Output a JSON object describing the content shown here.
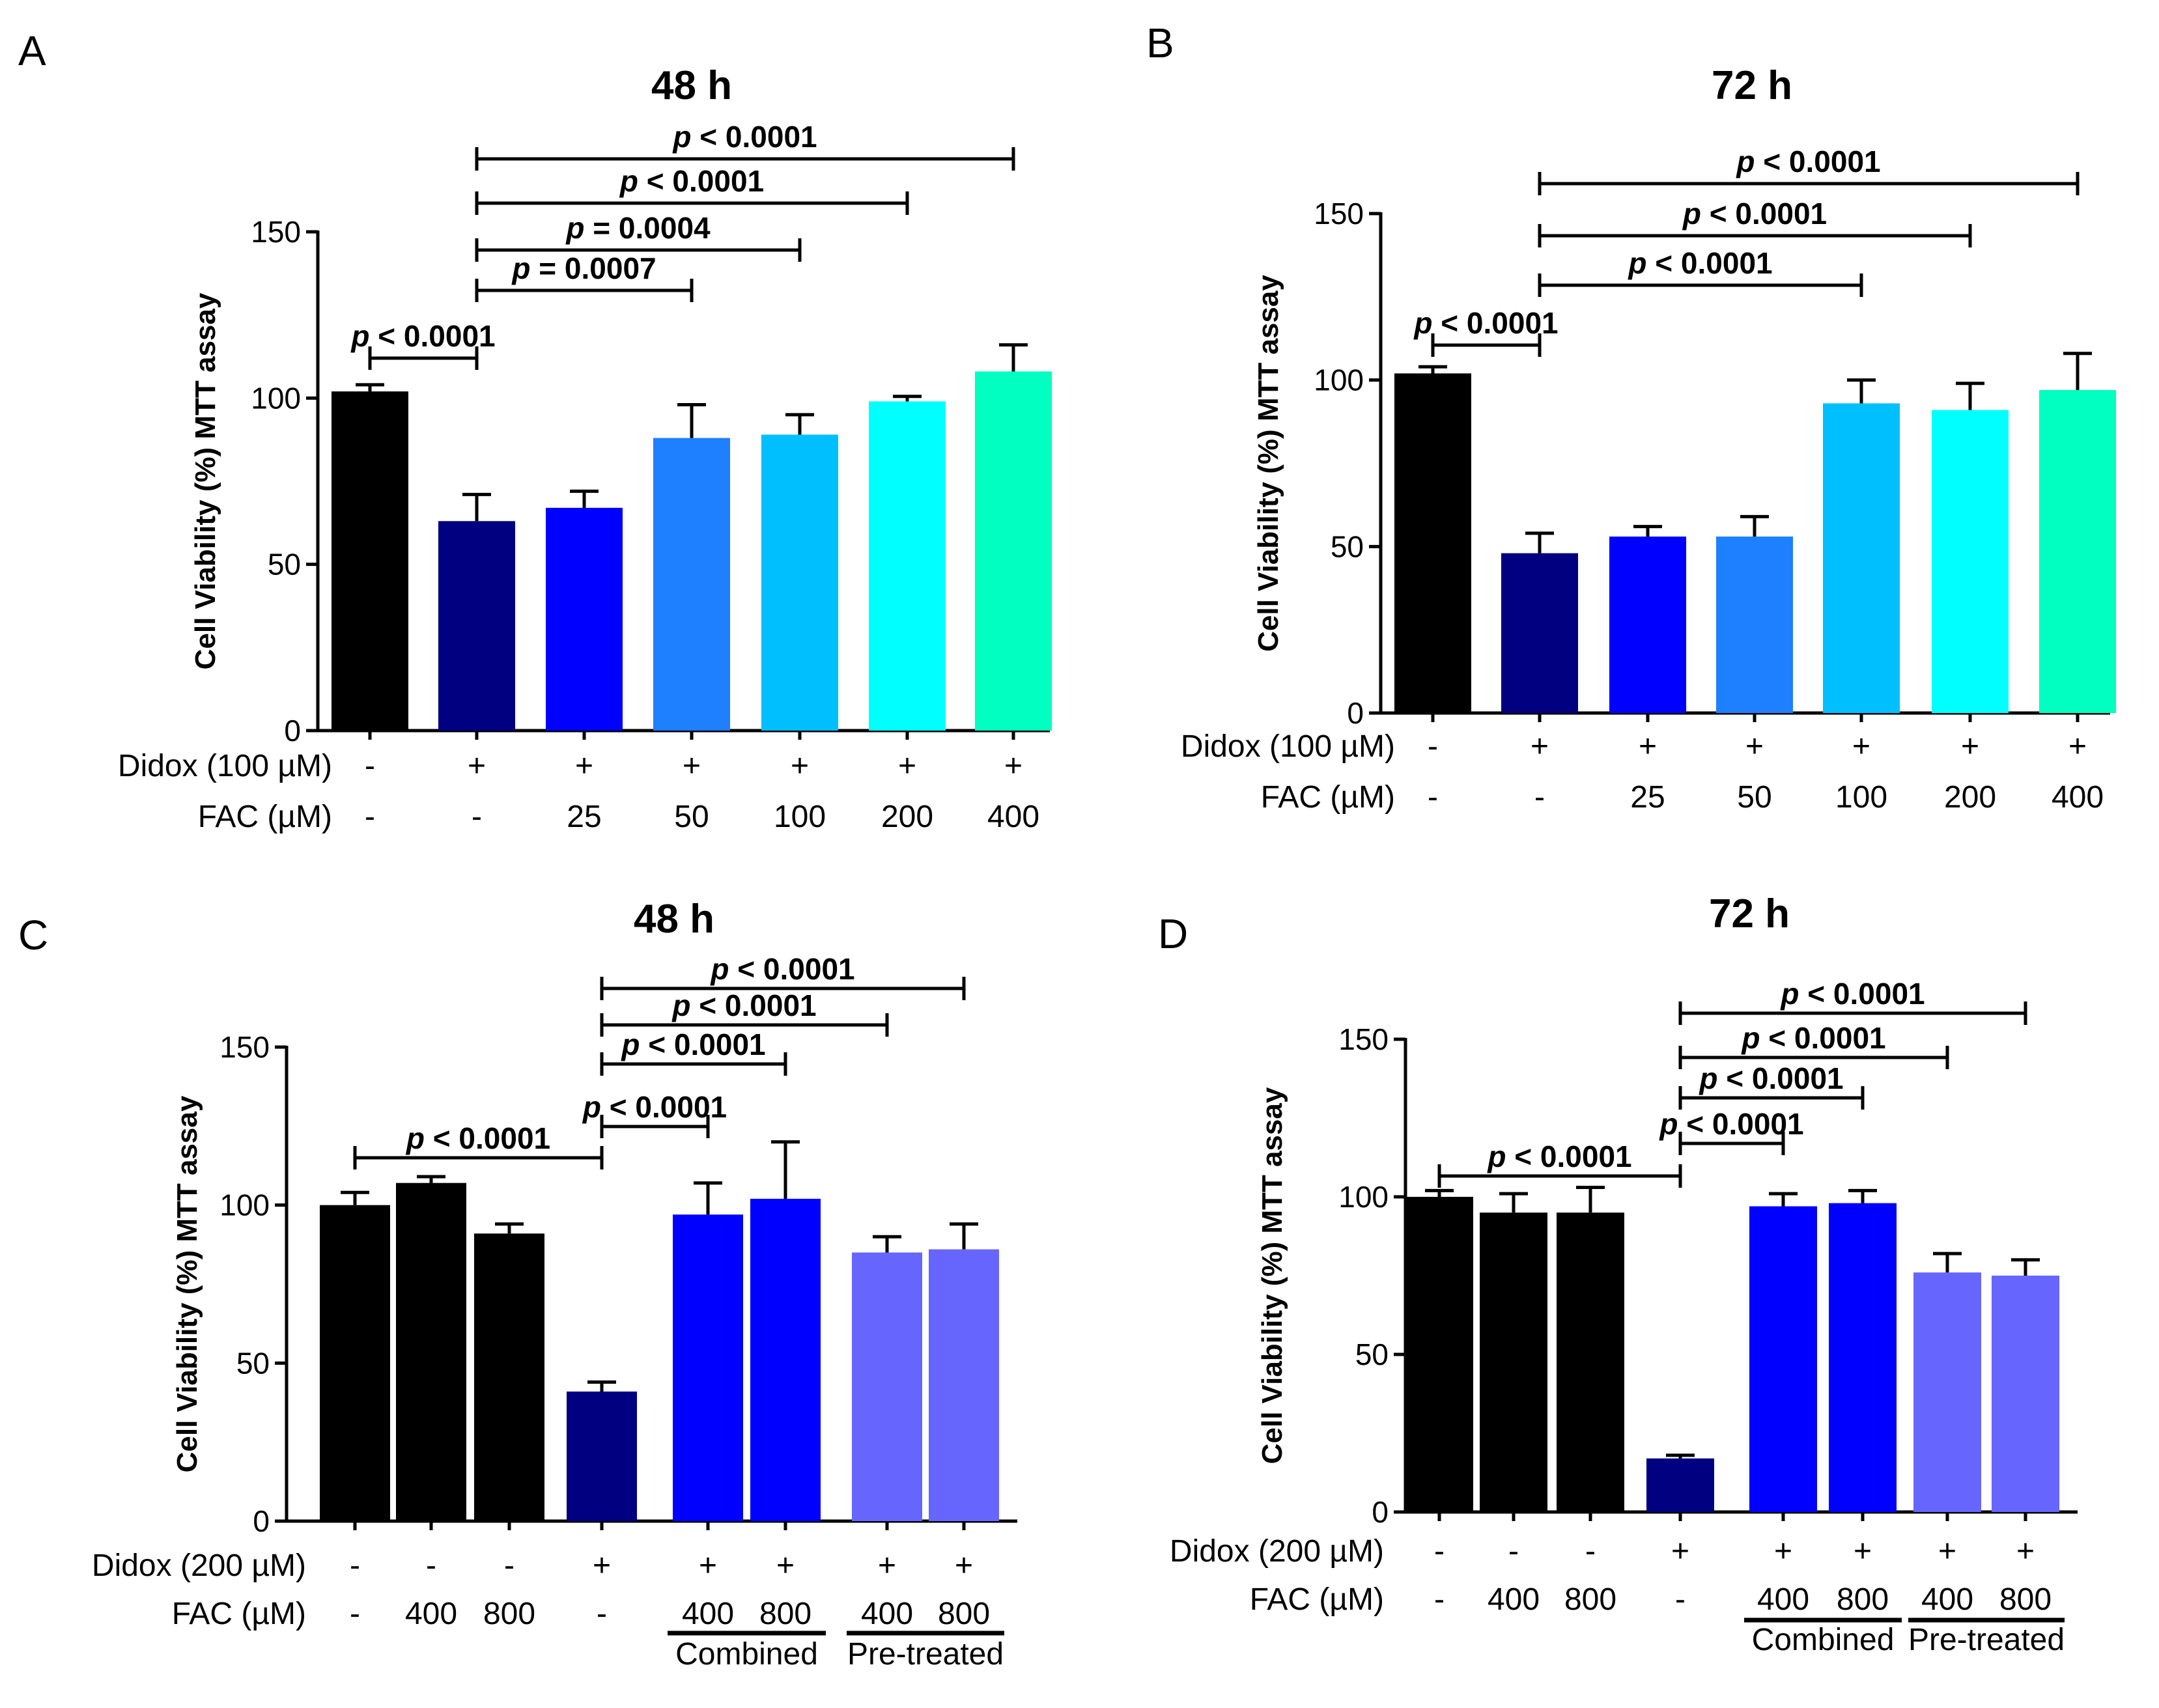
{
  "chart_data": [
    {
      "panel": "A",
      "type": "bar",
      "title": "48 h",
      "ylabel": "Cell Viability (%) MTT assay",
      "ylim": [
        0,
        150
      ],
      "yticks": [
        "0",
        "50",
        "100",
        "150"
      ],
      "condition_rows": [
        {
          "label": "Didox (100 µM)",
          "values": [
            "-",
            "+",
            "+",
            "+",
            "+",
            "+",
            "+"
          ]
        },
        {
          "label": "FAC (µM)",
          "values": [
            "-",
            "-",
            "25",
            "50",
            "100",
            "200",
            "400"
          ]
        }
      ],
      "groups": [],
      "bars": [
        {
          "value": 102,
          "error": 2,
          "color": "#000000"
        },
        {
          "value": 63,
          "error": 8,
          "color": "#000080"
        },
        {
          "value": 67,
          "error": 5,
          "color": "#0000ff"
        },
        {
          "value": 88,
          "error": 10,
          "color": "#1e7fff"
        },
        {
          "value": 89,
          "error": 6,
          "color": "#00bfff"
        },
        {
          "value": 99,
          "error": 1.5,
          "color": "#00ffff"
        },
        {
          "value": 108,
          "error": 8,
          "color": "#00ffc0"
        }
      ],
      "significance": [
        {
          "label": "p < 0.0001",
          "from": 0,
          "to": 1
        },
        {
          "label": "p = 0.0007",
          "from": 1,
          "to": 3
        },
        {
          "label": "p = 0.0004",
          "from": 1,
          "to": 4
        },
        {
          "label": "p < 0.0001",
          "from": 1,
          "to": 5
        },
        {
          "label": "p < 0.0001",
          "from": 1,
          "to": 6
        }
      ]
    },
    {
      "panel": "B",
      "type": "bar",
      "title": "72 h",
      "ylabel": "Cell Viability (%) MTT assay",
      "ylim": [
        0,
        150
      ],
      "yticks": [
        "0",
        "50",
        "100",
        "150"
      ],
      "condition_rows": [
        {
          "label": "Didox (100 µM)",
          "values": [
            "-",
            "+",
            "+",
            "+",
            "+",
            "+",
            "+"
          ]
        },
        {
          "label": "FAC (µM)",
          "values": [
            "-",
            "-",
            "25",
            "50",
            "100",
            "200",
            "400"
          ]
        }
      ],
      "groups": [],
      "bars": [
        {
          "value": 102,
          "error": 2,
          "color": "#000000"
        },
        {
          "value": 48,
          "error": 6,
          "color": "#000080"
        },
        {
          "value": 53,
          "error": 3,
          "color": "#0000ff"
        },
        {
          "value": 53,
          "error": 6,
          "color": "#1e7fff"
        },
        {
          "value": 93,
          "error": 7,
          "color": "#00bfff"
        },
        {
          "value": 91,
          "error": 8,
          "color": "#00ffff"
        },
        {
          "value": 97,
          "error": 11,
          "color": "#00ffc0"
        }
      ],
      "significance": [
        {
          "label": "p < 0.0001",
          "from": 0,
          "to": 1
        },
        {
          "label": "p < 0.0001",
          "from": 1,
          "to": 4
        },
        {
          "label": "p < 0.0001",
          "from": 1,
          "to": 5
        },
        {
          "label": "p < 0.0001",
          "from": 1,
          "to": 6
        }
      ]
    },
    {
      "panel": "C",
      "type": "bar",
      "title": "48 h",
      "ylabel": "Cell Viability (%) MTT assay",
      "ylim": [
        0,
        150
      ],
      "yticks": [
        "0",
        "50",
        "100",
        "150"
      ],
      "condition_rows": [
        {
          "label": "Didox (200 µM)",
          "values": [
            "-",
            "-",
            "-",
            "+",
            "+",
            "+",
            "+",
            "+"
          ]
        },
        {
          "label": "FAC (µM)",
          "values": [
            "-",
            "400",
            "800",
            "-",
            "400",
            "800",
            "400",
            "800"
          ]
        }
      ],
      "groups": [
        {
          "label": "Combined",
          "from": 4,
          "to": 5
        },
        {
          "label": "Pre-treated",
          "from": 6,
          "to": 7
        }
      ],
      "bars": [
        {
          "value": 100,
          "error": 4,
          "color": "#000000"
        },
        {
          "value": 107,
          "error": 2,
          "color": "#000000"
        },
        {
          "value": 91,
          "error": 3,
          "color": "#000000"
        },
        {
          "value": 41,
          "error": 3,
          "color": "#000080"
        },
        {
          "value": 97,
          "error": 10,
          "color": "#0000ff"
        },
        {
          "value": 102,
          "error": 18,
          "color": "#0000ff"
        },
        {
          "value": 85,
          "error": 5,
          "color": "#6666ff"
        },
        {
          "value": 86,
          "error": 8,
          "color": "#6666ff"
        }
      ],
      "significance": [
        {
          "label": "p < 0.0001",
          "from": 0,
          "to": 3
        },
        {
          "label": "p < 0.0001",
          "from": 3,
          "to": 4
        },
        {
          "label": "p < 0.0001",
          "from": 3,
          "to": 5
        },
        {
          "label": "p < 0.0001",
          "from": 3,
          "to": 6
        },
        {
          "label": "p < 0.0001",
          "from": 3,
          "to": 7
        }
      ]
    },
    {
      "panel": "D",
      "type": "bar",
      "title": "72 h",
      "ylabel": "Cell Viability (%) MTT assay",
      "ylim": [
        0,
        150
      ],
      "yticks": [
        "0",
        "50",
        "100",
        "150"
      ],
      "condition_rows": [
        {
          "label": "Didox (200 µM)",
          "values": [
            "-",
            "-",
            "-",
            "+",
            "+",
            "+",
            "+",
            "+"
          ]
        },
        {
          "label": "FAC (µM)",
          "values": [
            "-",
            "400",
            "800",
            "-",
            "400",
            "800",
            "400",
            "800"
          ]
        }
      ],
      "groups": [
        {
          "label": "Combined",
          "from": 4,
          "to": 5
        },
        {
          "label": "Pre-treated",
          "from": 6,
          "to": 7
        }
      ],
      "bars": [
        {
          "value": 100,
          "error": 2,
          "color": "#000000"
        },
        {
          "value": 95,
          "error": 6,
          "color": "#000000"
        },
        {
          "value": 95,
          "error": 8,
          "color": "#000000"
        },
        {
          "value": 17,
          "error": 1,
          "color": "#000080"
        },
        {
          "value": 97,
          "error": 4,
          "color": "#0000ff"
        },
        {
          "value": 98,
          "error": 4,
          "color": "#0000ff"
        },
        {
          "value": 76,
          "error": 6,
          "color": "#6666ff"
        },
        {
          "value": 75,
          "error": 5,
          "color": "#6666ff"
        }
      ],
      "significance": [
        {
          "label": "p < 0.0001",
          "from": 0,
          "to": 3
        },
        {
          "label": "p < 0.0001",
          "from": 3,
          "to": 4
        },
        {
          "label": "p < 0.0001",
          "from": 3,
          "to": 5
        },
        {
          "label": "p < 0.0001",
          "from": 3,
          "to": 6
        },
        {
          "label": "p < 0.0001",
          "from": 3,
          "to": 7
        }
      ]
    }
  ]
}
